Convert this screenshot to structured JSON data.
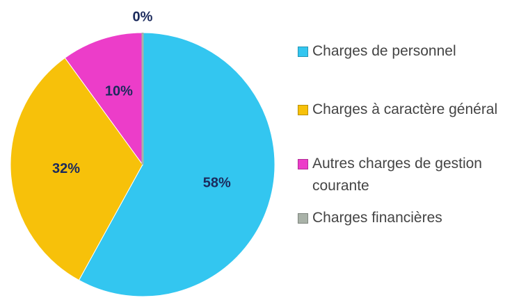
{
  "chart_data": {
    "type": "pie",
    "categories": [
      "Charges de personnel",
      "Charges à caractère général",
      "Autres charges de gestion courante",
      "Charges financières"
    ],
    "values": [
      58,
      32,
      10,
      0
    ],
    "value_labels": [
      "58%",
      "32%",
      "10%",
      "0%"
    ],
    "colors": [
      "#33c6f0",
      "#f7c10a",
      "#ec3dc9",
      "#a9b2a8"
    ],
    "legend": "right"
  }
}
